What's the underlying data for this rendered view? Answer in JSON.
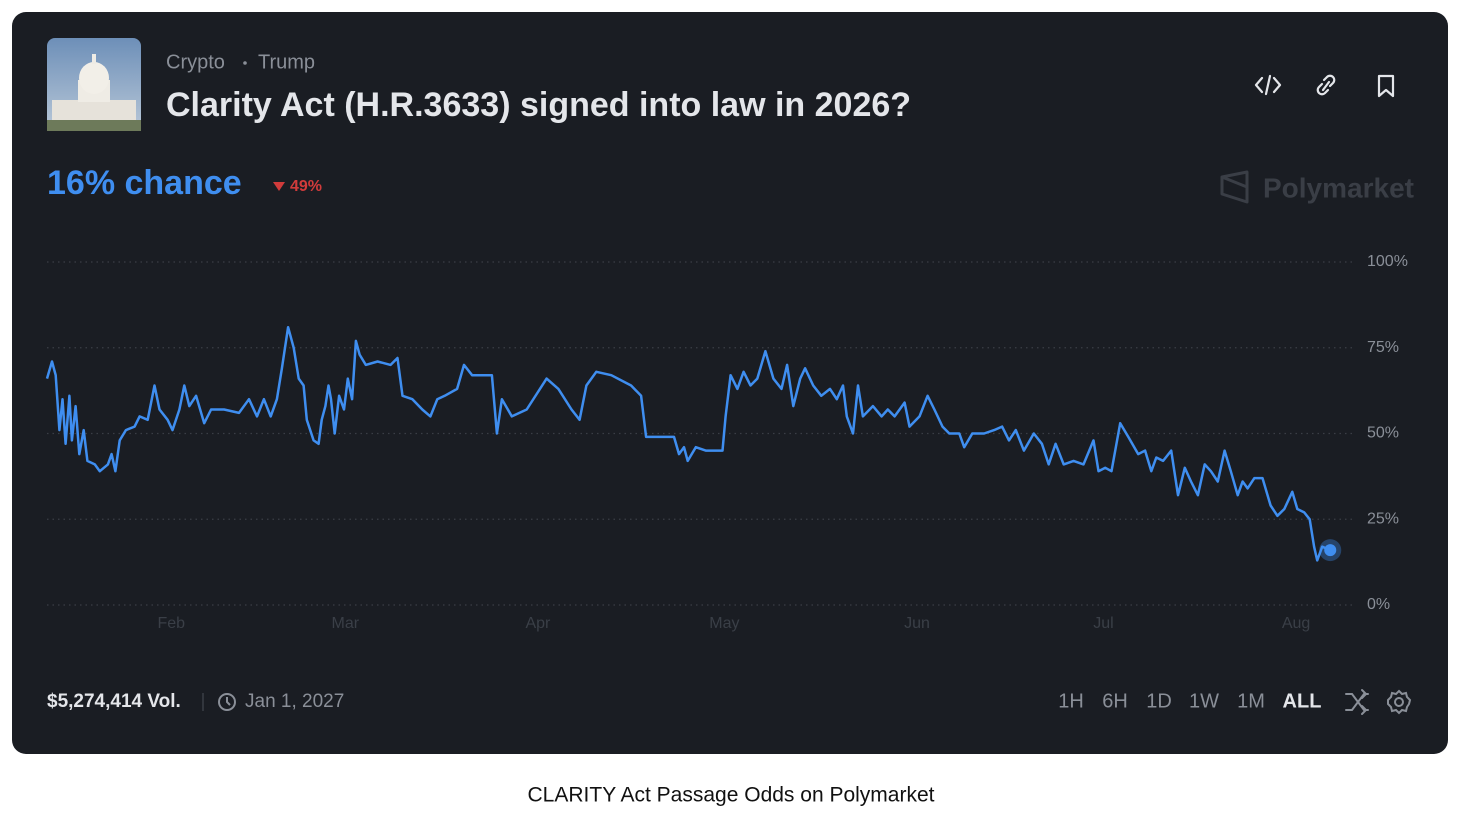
{
  "header": {
    "tags": [
      "Crypto",
      "Trump"
    ],
    "title": "Clarity Act (H.R.3633) signed into law in 2026?"
  },
  "chance": {
    "value": "16% chance",
    "change": "49%"
  },
  "brand": "Polymarket",
  "footer": {
    "volume": "$5,274,414 Vol.",
    "end_date": "Jan 1, 2027",
    "ranges": [
      "1H",
      "6H",
      "1D",
      "1W",
      "1M",
      "ALL"
    ]
  },
  "caption": "CLARITY Act Passage Odds on Polymarket",
  "chart_data": {
    "type": "line",
    "color": "#3f8ef0",
    "x": [
      12,
      12.8,
      13.4,
      14,
      14.5,
      15,
      15.6,
      16,
      16.6,
      17.2,
      17.9,
      18.5,
      19.7,
      20.5,
      21.8,
      22.4,
      23,
      23.7,
      24.7,
      26.1,
      26.9,
      28.2,
      29.3,
      30.1,
      31.4,
      32.2,
      33.3,
      34.1,
      34.9,
      36,
      37.3,
      38.4,
      40.5,
      42.9,
      44.5,
      45.8,
      46.9,
      48,
      49,
      49.8,
      50.8,
      51.7,
      52.5,
      53.3,
      53.8,
      54.9,
      55.7,
      56.2,
      56.8,
      57.3,
      57.7,
      58.3,
      59,
      59.8,
      60.4,
      61.1,
      61.7,
      62.3,
      63.3,
      65.2,
      67.3,
      68.4,
      69.2,
      70.8,
      72.4,
      73.7,
      74.8,
      76,
      78,
      79.1,
      80.4,
      82.8,
      83.6,
      84.4,
      85.2,
      86.8,
      89.2,
      92.4,
      94.3,
      96.4,
      97.7,
      98.8,
      100.4,
      102.8,
      106,
      107.6,
      108.4,
      110,
      112.9,
      113.7,
      114.5,
      115.1,
      116.4,
      118,
      120.7,
      121.2,
      122,
      123.1,
      124.1,
      125.2,
      126.3,
      127.6,
      128.9,
      130.2,
      131.1,
      132.1,
      133.2,
      134,
      135.3,
      136.6,
      138,
      139.1,
      140.1,
      140.7,
      141.7,
      142.5,
      143.3,
      144.9,
      146.3,
      147.3,
      148.4,
      150,
      150.8,
      152.4,
      153.7,
      154.8,
      156.1,
      157.2,
      158.8,
      159.6,
      160.9,
      162.8,
      164.4,
      165.7,
      166.8,
      167.9,
      169.2,
      170.8,
      172.1,
      173.2,
      174.3,
      175.6,
      177.2,
      178.8,
      180.4,
      181.2,
      182.3,
      183.3,
      184.7,
      186,
      187.6,
      188.7,
      189.7,
      190.5,
      191.6,
      192.9,
      194,
      195.1,
      196.1,
      197.2,
      198.3,
      199.3,
      200.4,
      201.5,
      202.5,
      203.6,
      204.4,
      205.2,
      206.3,
      207.6,
      208.9,
      210,
      211.1,
      212.4,
      213.2,
      214.3,
      215.2,
      215.9,
      216.4,
      217.2,
      218.5
    ],
    "values": [
      66,
      71,
      67,
      51,
      60,
      47,
      61,
      48,
      58,
      44,
      51,
      42,
      41,
      39,
      41,
      44,
      39,
      48,
      51,
      52,
      55,
      54,
      64,
      57,
      54,
      51,
      57,
      64,
      58,
      61,
      53,
      57,
      57,
      56,
      60,
      55,
      60,
      55,
      60,
      69,
      81,
      75,
      66,
      64,
      54,
      48,
      47,
      54,
      58,
      64,
      60,
      50,
      61,
      57,
      66,
      60,
      77,
      73,
      70,
      71,
      70,
      72,
      61,
      60,
      57,
      55,
      60,
      61,
      63,
      70,
      67,
      67,
      67,
      50,
      60,
      55,
      57,
      66,
      63,
      57,
      54,
      64,
      68,
      67,
      64,
      61,
      49,
      49,
      49,
      44,
      46,
      42,
      46,
      45,
      45,
      55,
      67,
      63,
      68,
      64,
      66,
      74,
      66,
      63,
      70,
      58,
      66,
      69,
      64,
      61,
      63,
      60,
      64,
      55,
      50,
      64,
      55,
      58,
      55,
      57,
      55,
      59,
      52,
      55,
      61,
      57,
      52,
      50,
      50,
      46,
      50,
      50,
      51,
      52,
      48,
      51,
      45,
      50,
      47,
      41,
      47,
      41,
      42,
      41,
      48,
      39,
      40,
      39,
      53,
      49,
      44,
      45,
      39,
      43,
      42,
      45,
      32,
      40,
      36,
      32,
      41,
      39,
      36,
      45,
      39,
      32,
      36,
      34,
      37,
      37,
      29,
      26,
      28,
      33,
      28,
      27,
      25,
      17,
      13,
      17,
      16
    ],
    "xlim": [
      12,
      222
    ],
    "xticks": [
      {
        "value": 32,
        "label": "Feb"
      },
      {
        "value": 60,
        "label": "Mar"
      },
      {
        "value": 91,
        "label": "Apr"
      },
      {
        "value": 121,
        "label": "May"
      },
      {
        "value": 152,
        "label": "Jun"
      },
      {
        "value": 182,
        "label": "Jul"
      },
      {
        "value": 213,
        "label": "Aug"
      }
    ],
    "ylim": [
      0,
      100
    ],
    "yticks": [
      {
        "value": 0,
        "label": "0%"
      },
      {
        "value": 25,
        "label": "25%"
      },
      {
        "value": 50,
        "label": "50%"
      },
      {
        "value": 75,
        "label": "75%"
      },
      {
        "value": 100,
        "label": "100%"
      }
    ],
    "grid": true
  }
}
